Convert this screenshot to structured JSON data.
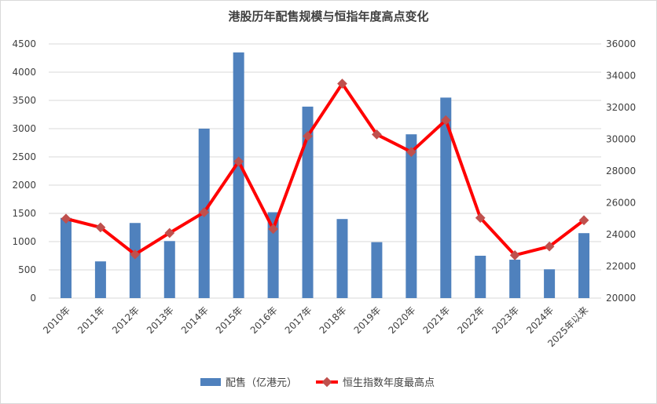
{
  "chart_data": {
    "type": "bar",
    "title": "港股历年配售规模与恒指年度高点变化",
    "categories": [
      "2010年",
      "2011年",
      "2012年",
      "2013年",
      "2014年",
      "2015年",
      "2016年",
      "2017年",
      "2018年",
      "2019年",
      "2020年",
      "2021年",
      "2022年",
      "2023年",
      "2024年",
      "2025年以来"
    ],
    "series": [
      {
        "name": "配售（亿港元）",
        "type": "bar",
        "axis": "left",
        "color": "#4f81bd",
        "values": [
          1420,
          650,
          1330,
          1010,
          3000,
          4350,
          1520,
          3390,
          1400,
          990,
          2900,
          3550,
          750,
          680,
          510,
          1150
        ]
      },
      {
        "name": "恒生指数年度最高点",
        "type": "line",
        "axis": "right",
        "color": "#ff0000",
        "marker_color": "#c0504d",
        "values": [
          25000,
          24450,
          22750,
          24100,
          25400,
          28600,
          24350,
          30200,
          33500,
          30300,
          29200,
          31200,
          25050,
          22700,
          23250,
          24900
        ]
      }
    ],
    "y_left": {
      "min": 0,
      "max": 4500,
      "step": 500,
      "ticks": [
        "0",
        "500",
        "1000",
        "1500",
        "2000",
        "2500",
        "3000",
        "3500",
        "4000",
        "4500"
      ]
    },
    "y_right": {
      "min": 20000,
      "max": 36000,
      "step": 2000,
      "ticks": [
        "20000",
        "22000",
        "24000",
        "26000",
        "28000",
        "30000",
        "32000",
        "34000",
        "36000"
      ]
    },
    "grid": true,
    "legend_position": "bottom"
  }
}
